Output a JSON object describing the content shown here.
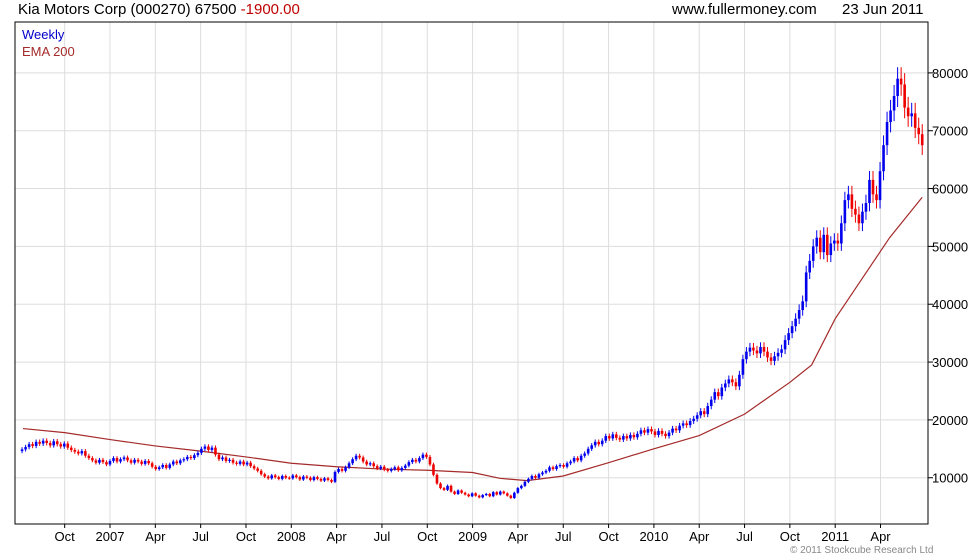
{
  "header": {
    "title": "Kia Motors Corp (000270) 67500",
    "change": "-1900.00",
    "site": "www.fullermoney.com",
    "date": "23 Jun 2011"
  },
  "legend": {
    "weekly": "Weekly",
    "ema": "EMA 200"
  },
  "copyright": "© 2011 Stockcube Research Ltd",
  "colors": {
    "up": "#0000ee",
    "down": "#ee0000",
    "ema": "#a52a2a",
    "grid": "#dddddd"
  },
  "chart_data": {
    "type": "candlestick",
    "title": "Kia Motors Corp (000270) weekly",
    "ylim": [
      2000,
      88800
    ],
    "y_ticks": [
      10000,
      20000,
      30000,
      40000,
      50000,
      60000,
      70000,
      80000
    ],
    "y_tick_labels": [
      "10000",
      "20000",
      "30000",
      "40000",
      "50000",
      "60000",
      "70000",
      "80000"
    ],
    "x_ticks": [
      {
        "t": 2006.75,
        "label": "Oct"
      },
      {
        "t": 2007.0,
        "label": "2007"
      },
      {
        "t": 2007.25,
        "label": "Apr"
      },
      {
        "t": 2007.5,
        "label": "Jul"
      },
      {
        "t": 2007.75,
        "label": "Oct"
      },
      {
        "t": 2008.0,
        "label": "2008"
      },
      {
        "t": 2008.25,
        "label": "Apr"
      },
      {
        "t": 2008.5,
        "label": "Jul"
      },
      {
        "t": 2008.75,
        "label": "Oct"
      },
      {
        "t": 2009.0,
        "label": "2009"
      },
      {
        "t": 2009.25,
        "label": "Apr"
      },
      {
        "t": 2009.5,
        "label": "Jul"
      },
      {
        "t": 2009.75,
        "label": "Oct"
      },
      {
        "t": 2010.0,
        "label": "2010"
      },
      {
        "t": 2010.25,
        "label": "Apr"
      },
      {
        "t": 2010.5,
        "label": "Jul"
      },
      {
        "t": 2010.75,
        "label": "Oct"
      },
      {
        "t": 2011.0,
        "label": "2011"
      },
      {
        "t": 2011.25,
        "label": "Apr"
      }
    ],
    "x_range": [
      2006.515,
      2011.48
    ],
    "weekly_close": [
      14900,
      15300,
      15800,
      15500,
      16200,
      15900,
      16400,
      16000,
      15600,
      16300,
      15800,
      15400,
      15900,
      15200,
      14800,
      14500,
      14200,
      14600,
      13800,
      13400,
      13000,
      12600,
      13100,
      12700,
      12300,
      12900,
      13400,
      12800,
      13200,
      13500,
      13000,
      12600,
      13100,
      12800,
      12400,
      12900,
      12500,
      11900,
      11500,
      11800,
      12200,
      11700,
      12300,
      12800,
      12500,
      13000,
      13200,
      13600,
      13400,
      13900,
      14300,
      15000,
      15400,
      14800,
      15200,
      14000,
      13200,
      13500,
      12900,
      13100,
      12600,
      12400,
      12800,
      12300,
      12600,
      12000,
      11600,
      11200,
      10600,
      10200,
      9900,
      10400,
      10100,
      9800,
      10300,
      10000,
      9900,
      10400,
      10100,
      9700,
      10200,
      10000,
      9600,
      10100,
      9800,
      9500,
      9900,
      9600,
      9300,
      11000,
      11500,
      11200,
      11800,
      12500,
      13200,
      13800,
      13500,
      12800,
      12300,
      12500,
      12000,
      11600,
      11900,
      11400,
      11200,
      11500,
      11800,
      11300,
      11700,
      12100,
      12700,
      13100,
      12800,
      13400,
      14000,
      13600,
      12300,
      10500,
      9000,
      8200,
      7900,
      8600,
      7600,
      7200,
      7800,
      7400,
      7100,
      6800,
      7300,
      6900,
      6600,
      7000,
      7200,
      6800,
      7500,
      7100,
      7600,
      7300,
      6900,
      6500,
      7400,
      8200,
      8600,
      9300,
      9800,
      10300,
      10000,
      10600,
      10900,
      11200,
      11800,
      11500,
      12000,
      12200,
      11900,
      12500,
      12800,
      13400,
      13000,
      13800,
      14200,
      15000,
      15600,
      16200,
      15800,
      16400,
      17200,
      16800,
      17500,
      16900,
      16600,
      17200,
      16800,
      17400,
      17000,
      17600,
      18200,
      17800,
      18400,
      18000,
      17400,
      18100,
      17600,
      17200,
      17800,
      18500,
      18200,
      19000,
      19400,
      19100,
      19800,
      20200,
      20800,
      21500,
      21000,
      22400,
      23500,
      24800,
      24100,
      25600,
      26300,
      27000,
      26500,
      25800,
      27800,
      30500,
      31800,
      32500,
      32000,
      31500,
      32600,
      31800,
      30800,
      30200,
      31000,
      31600,
      32200,
      33800,
      35000,
      36200,
      37500,
      39000,
      40500,
      45500,
      47500,
      50000,
      51500,
      49000,
      52000,
      48500,
      50500,
      51000,
      50500,
      54000,
      58000,
      59000,
      56500,
      55500,
      54000,
      56000,
      57500,
      61500,
      59000,
      58000,
      63000,
      67500,
      71500,
      73500,
      76000,
      79000,
      78000,
      74000,
      72500,
      73000,
      70500,
      69400,
      67500
    ],
    "ema200": [
      [
        2006.52,
        18500
      ],
      [
        2006.75,
        17800
      ],
      [
        2007.0,
        16600
      ],
      [
        2007.25,
        15500
      ],
      [
        2007.5,
        14600
      ],
      [
        2007.75,
        13600
      ],
      [
        2008.0,
        12500
      ],
      [
        2008.25,
        11900
      ],
      [
        2008.5,
        11500
      ],
      [
        2008.75,
        11300
      ],
      [
        2009.0,
        10900
      ],
      [
        2009.15,
        9900
      ],
      [
        2009.3,
        9500
      ],
      [
        2009.5,
        10300
      ],
      [
        2009.75,
        12600
      ],
      [
        2010.0,
        15000
      ],
      [
        2010.25,
        17300
      ],
      [
        2010.5,
        21000
      ],
      [
        2010.75,
        26500
      ],
      [
        2010.87,
        29500
      ],
      [
        2011.0,
        37500
      ],
      [
        2011.15,
        44500
      ],
      [
        2011.3,
        51500
      ],
      [
        2011.48,
        58500
      ]
    ]
  }
}
